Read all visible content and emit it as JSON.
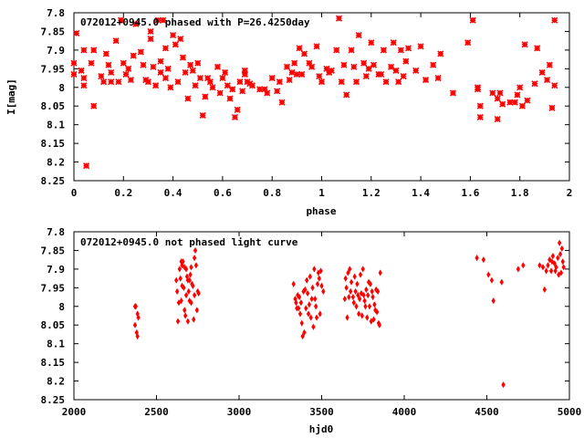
{
  "chart_data": [
    {
      "type": "scatter",
      "title": "072012+0945.0 phased with P=26.4250day",
      "xlabel": "phase",
      "ylabel": "I[mag]",
      "xlim": [
        0,
        2
      ],
      "ylim": [
        7.8,
        8.25
      ],
      "y_inverted": true,
      "xticks": [
        "0",
        "0.2",
        "0.4",
        "0.6",
        "0.8",
        "1",
        "1.2",
        "1.4",
        "1.6",
        "1.8",
        "2"
      ],
      "yticks": [
        "7.8",
        "7.85",
        "7.9",
        "7.95",
        "8",
        "8.05",
        "8.1",
        "8.15",
        "8.2",
        "8.25"
      ],
      "marker": "star",
      "color": "#ff0000",
      "grid": false,
      "points": [
        [
          0.0,
          7.935
        ],
        [
          0.0,
          7.965
        ],
        [
          0.01,
          7.855
        ],
        [
          0.03,
          7.955
        ],
        [
          0.04,
          7.975
        ],
        [
          0.04,
          7.9
        ],
        [
          0.04,
          7.995
        ],
        [
          0.05,
          8.21
        ],
        [
          0.07,
          7.935
        ],
        [
          0.08,
          7.9
        ],
        [
          0.08,
          8.05
        ],
        [
          0.11,
          7.97
        ],
        [
          0.12,
          7.985
        ],
        [
          0.13,
          7.91
        ],
        [
          0.14,
          7.94
        ],
        [
          0.15,
          7.985
        ],
        [
          0.15,
          7.96
        ],
        [
          0.17,
          7.875
        ],
        [
          0.18,
          7.985
        ],
        [
          0.19,
          7.82
        ],
        [
          0.2,
          7.935
        ],
        [
          0.21,
          7.965
        ],
        [
          0.22,
          7.95
        ],
        [
          0.23,
          7.98
        ],
        [
          0.24,
          7.915
        ],
        [
          0.25,
          7.83
        ],
        [
          0.27,
          7.905
        ],
        [
          0.28,
          7.94
        ],
        [
          0.29,
          7.98
        ],
        [
          0.3,
          7.985
        ],
        [
          0.31,
          7.85
        ],
        [
          0.31,
          7.87
        ],
        [
          0.32,
          7.945
        ],
        [
          0.33,
          7.995
        ],
        [
          0.34,
          7.82
        ],
        [
          0.35,
          7.96
        ],
        [
          0.35,
          7.93
        ],
        [
          0.36,
          7.82
        ],
        [
          0.37,
          7.895
        ],
        [
          0.37,
          7.975
        ],
        [
          0.38,
          7.95
        ],
        [
          0.39,
          8.0
        ],
        [
          0.4,
          7.86
        ],
        [
          0.41,
          7.885
        ],
        [
          0.42,
          7.985
        ],
        [
          0.43,
          7.87
        ],
        [
          0.44,
          7.92
        ],
        [
          0.45,
          7.96
        ],
        [
          0.46,
          8.03
        ],
        [
          0.47,
          7.94
        ],
        [
          0.48,
          7.955
        ],
        [
          0.49,
          7.995
        ],
        [
          0.5,
          7.935
        ],
        [
          0.51,
          7.975
        ],
        [
          0.52,
          8.075
        ],
        [
          0.53,
          8.025
        ],
        [
          0.54,
          7.975
        ],
        [
          0.55,
          7.985
        ],
        [
          0.56,
          8.0
        ],
        [
          0.58,
          7.945
        ],
        [
          0.59,
          8.015
        ],
        [
          0.6,
          7.975
        ],
        [
          0.61,
          7.96
        ],
        [
          0.62,
          7.995
        ],
        [
          0.63,
          8.03
        ],
        [
          0.64,
          8.005
        ],
        [
          0.65,
          8.08
        ],
        [
          0.66,
          8.06
        ],
        [
          0.67,
          7.985
        ],
        [
          0.68,
          8.01
        ],
        [
          0.69,
          7.955
        ],
        [
          0.69,
          7.965
        ],
        [
          0.7,
          7.985
        ],
        [
          0.71,
          7.99
        ],
        [
          0.72,
          7.995
        ],
        [
          0.75,
          8.005
        ],
        [
          0.77,
          8.005
        ],
        [
          0.78,
          8.015
        ],
        [
          0.8,
          7.975
        ],
        [
          0.82,
          8.01
        ],
        [
          0.83,
          7.985
        ],
        [
          0.84,
          8.04
        ],
        [
          0.86,
          7.945
        ],
        [
          0.87,
          7.98
        ],
        [
          0.88,
          7.96
        ],
        [
          0.89,
          7.935
        ],
        [
          0.9,
          7.965
        ],
        [
          0.91,
          7.895
        ],
        [
          0.92,
          7.965
        ],
        [
          0.93,
          7.91
        ],
        [
          0.95,
          7.935
        ],
        [
          0.96,
          7.945
        ],
        [
          0.98,
          7.89
        ],
        [
          0.99,
          7.97
        ],
        [
          1.0,
          7.985
        ],
        [
          1.02,
          7.95
        ],
        [
          1.03,
          7.96
        ],
        [
          1.04,
          7.955
        ],
        [
          1.06,
          7.9
        ],
        [
          1.07,
          7.815
        ],
        [
          1.08,
          7.985
        ],
        [
          1.09,
          7.94
        ],
        [
          1.1,
          8.02
        ],
        [
          1.12,
          7.9
        ],
        [
          1.13,
          7.945
        ],
        [
          1.14,
          7.985
        ],
        [
          1.15,
          7.86
        ],
        [
          1.17,
          7.935
        ],
        [
          1.18,
          7.97
        ],
        [
          1.19,
          7.95
        ],
        [
          1.2,
          7.88
        ],
        [
          1.21,
          7.94
        ],
        [
          1.23,
          7.965
        ],
        [
          1.24,
          7.965
        ],
        [
          1.25,
          7.9
        ],
        [
          1.26,
          7.985
        ],
        [
          1.28,
          7.945
        ],
        [
          1.29,
          7.88
        ],
        [
          1.3,
          7.955
        ],
        [
          1.31,
          7.985
        ],
        [
          1.32,
          7.9
        ],
        [
          1.33,
          7.97
        ],
        [
          1.34,
          7.93
        ],
        [
          1.35,
          7.895
        ],
        [
          1.38,
          7.955
        ],
        [
          1.4,
          7.89
        ],
        [
          1.42,
          7.98
        ],
        [
          1.45,
          7.94
        ],
        [
          1.47,
          7.975
        ],
        [
          1.48,
          7.91
        ],
        [
          1.53,
          8.015
        ],
        [
          1.59,
          7.88
        ],
        [
          1.61,
          7.82
        ],
        [
          1.63,
          8.0
        ],
        [
          1.63,
          8.005
        ],
        [
          1.64,
          8.08
        ],
        [
          1.64,
          8.05
        ],
        [
          1.69,
          8.015
        ],
        [
          1.71,
          8.03
        ],
        [
          1.71,
          8.085
        ],
        [
          1.72,
          8.015
        ],
        [
          1.73,
          8.045
        ],
        [
          1.76,
          8.04
        ],
        [
          1.78,
          8.04
        ],
        [
          1.79,
          8.02
        ],
        [
          1.8,
          8.0
        ],
        [
          1.81,
          8.05
        ],
        [
          1.82,
          7.885
        ],
        [
          1.83,
          8.035
        ],
        [
          1.86,
          7.99
        ],
        [
          1.87,
          7.895
        ],
        [
          1.89,
          7.96
        ],
        [
          1.91,
          7.98
        ],
        [
          1.92,
          7.94
        ],
        [
          1.93,
          8.055
        ],
        [
          1.94,
          7.82
        ],
        [
          1.94,
          7.995
        ]
      ]
    },
    {
      "type": "scatter",
      "title": "072012+0945.0 not phased light curve",
      "xlabel": "hjd0",
      "ylabel": "",
      "xlim": [
        2000,
        5000
      ],
      "ylim": [
        7.8,
        8.25
      ],
      "y_inverted": true,
      "xticks": [
        "2000",
        "2500",
        "3000",
        "3500",
        "4000",
        "4500",
        "5000"
      ],
      "yticks": [
        "7.8",
        "7.85",
        "7.9",
        "7.95",
        "8",
        "8.05",
        "8.1",
        "8.15",
        "8.2",
        "8.25"
      ],
      "marker": "diamond",
      "color": "#ff0000",
      "grid": false,
      "points": [
        [
          2370,
          8.0
        ],
        [
          2370,
          8.05
        ],
        [
          2375,
          8.0
        ],
        [
          2380,
          8.07
        ],
        [
          2385,
          8.08
        ],
        [
          2385,
          8.02
        ],
        [
          2390,
          8.03
        ],
        [
          2620,
          7.93
        ],
        [
          2625,
          7.96
        ],
        [
          2630,
          8.04
        ],
        [
          2635,
          7.99
        ],
        [
          2640,
          7.9
        ],
        [
          2645,
          7.925
        ],
        [
          2650,
          7.88
        ],
        [
          2650,
          7.985
        ],
        [
          2655,
          7.89
        ],
        [
          2655,
          7.945
        ],
        [
          2660,
          7.88
        ],
        [
          2665,
          7.95
        ],
        [
          2670,
          8.01
        ],
        [
          2670,
          7.895
        ],
        [
          2675,
          8.025
        ],
        [
          2680,
          7.9
        ],
        [
          2680,
          7.97
        ],
        [
          2685,
          7.92
        ],
        [
          2690,
          7.93
        ],
        [
          2690,
          8.04
        ],
        [
          2695,
          7.96
        ],
        [
          2700,
          7.93
        ],
        [
          2700,
          7.985
        ],
        [
          2705,
          7.915
        ],
        [
          2710,
          7.895
        ],
        [
          2710,
          7.99
        ],
        [
          2715,
          7.94
        ],
        [
          2720,
          7.945
        ],
        [
          2725,
          8.035
        ],
        [
          2730,
          7.87
        ],
        [
          2730,
          7.97
        ],
        [
          2735,
          7.85
        ],
        [
          2740,
          7.89
        ],
        [
          2745,
          8.01
        ],
        [
          2750,
          7.96
        ],
        [
          2755,
          7.965
        ],
        [
          3330,
          7.94
        ],
        [
          3340,
          7.98
        ],
        [
          3345,
          7.99
        ],
        [
          3350,
          8.005
        ],
        [
          3355,
          7.97
        ],
        [
          3360,
          8.005
        ],
        [
          3365,
          7.975
        ],
        [
          3370,
          8.02
        ],
        [
          3375,
          7.99
        ],
        [
          3380,
          8.045
        ],
        [
          3385,
          8.08
        ],
        [
          3390,
          7.96
        ],
        [
          3395,
          8.07
        ],
        [
          3400,
          7.955
        ],
        [
          3405,
          8.005
        ],
        [
          3410,
          7.93
        ],
        [
          3415,
          7.965
        ],
        [
          3420,
          8.02
        ],
        [
          3425,
          7.995
        ],
        [
          3430,
          7.92
        ],
        [
          3435,
          8.03
        ],
        [
          3440,
          7.98
        ],
        [
          3445,
          7.95
        ],
        [
          3450,
          8.055
        ],
        [
          3455,
          7.9
        ],
        [
          3460,
          7.98
        ],
        [
          3465,
          8.0
        ],
        [
          3470,
          8.03
        ],
        [
          3475,
          7.94
        ],
        [
          3480,
          7.91
        ],
        [
          3485,
          7.925
        ],
        [
          3490,
          8.02
        ],
        [
          3495,
          7.905
        ],
        [
          3500,
          7.945
        ],
        [
          3510,
          7.96
        ],
        [
          3640,
          7.98
        ],
        [
          3645,
          7.925
        ],
        [
          3650,
          7.95
        ],
        [
          3655,
          8.03
        ],
        [
          3660,
          7.91
        ],
        [
          3665,
          7.975
        ],
        [
          3670,
          7.9
        ],
        [
          3675,
          7.96
        ],
        [
          3680,
          7.935
        ],
        [
          3690,
          7.975
        ],
        [
          3695,
          7.99
        ],
        [
          3700,
          7.92
        ],
        [
          3705,
          7.96
        ],
        [
          3710,
          8.0
        ],
        [
          3715,
          7.94
        ],
        [
          3720,
          7.97
        ],
        [
          3725,
          8.02
        ],
        [
          3730,
          7.98
        ],
        [
          3735,
          7.915
        ],
        [
          3740,
          7.965
        ],
        [
          3745,
          8.025
        ],
        [
          3750,
          7.9
        ],
        [
          3755,
          7.97
        ],
        [
          3760,
          7.985
        ],
        [
          3765,
          8.0
        ],
        [
          3770,
          7.955
        ],
        [
          3775,
          8.03
        ],
        [
          3780,
          7.97
        ],
        [
          3785,
          7.935
        ],
        [
          3790,
          8.0
        ],
        [
          3795,
          7.94
        ],
        [
          3800,
          8.04
        ],
        [
          3805,
          7.96
        ],
        [
          3810,
          7.975
        ],
        [
          3815,
          8.035
        ],
        [
          3820,
          7.995
        ],
        [
          3825,
          8.01
        ],
        [
          3830,
          7.955
        ],
        [
          3835,
          8.015
        ],
        [
          3840,
          7.96
        ],
        [
          3845,
          8.045
        ],
        [
          3850,
          8.05
        ],
        [
          3855,
          7.91
        ],
        [
          4440,
          7.87
        ],
        [
          4480,
          7.875
        ],
        [
          4510,
          7.915
        ],
        [
          4530,
          7.93
        ],
        [
          4540,
          7.985
        ],
        [
          4590,
          7.935
        ],
        [
          4600,
          8.21
        ],
        [
          4690,
          7.9
        ],
        [
          4720,
          7.89
        ],
        [
          4820,
          7.89
        ],
        [
          4840,
          7.895
        ],
        [
          4850,
          7.955
        ],
        [
          4860,
          7.905
        ],
        [
          4870,
          7.89
        ],
        [
          4880,
          7.875
        ],
        [
          4890,
          7.905
        ],
        [
          4895,
          7.88
        ],
        [
          4900,
          7.865
        ],
        [
          4910,
          7.885
        ],
        [
          4915,
          7.905
        ],
        [
          4920,
          7.895
        ],
        [
          4930,
          7.87
        ],
        [
          4935,
          7.915
        ],
        [
          4940,
          7.83
        ],
        [
          4945,
          7.86
        ],
        [
          4950,
          7.91
        ],
        [
          4955,
          7.845
        ],
        [
          4960,
          7.88
        ],
        [
          4965,
          7.895
        ]
      ]
    }
  ]
}
